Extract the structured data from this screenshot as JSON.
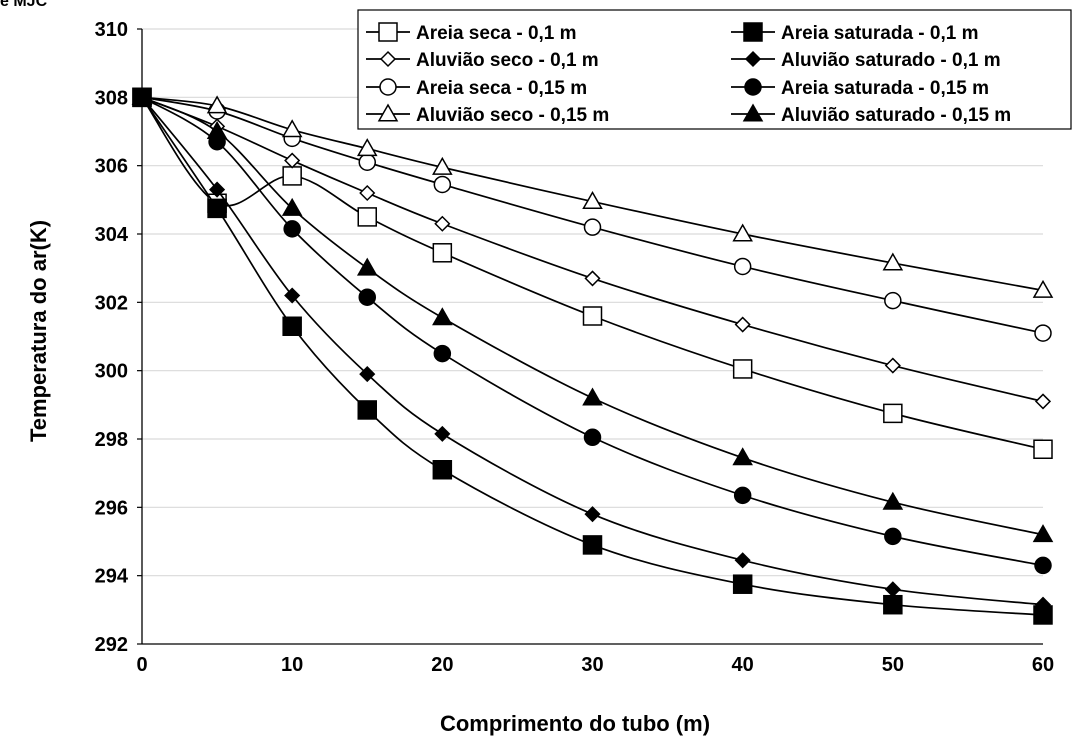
{
  "corner_label": "e MJC",
  "chart_data": {
    "type": "line",
    "title": "",
    "xlabel": "Comprimento do tubo (m)",
    "ylabel": "Temperatura do ar(K)",
    "xlim": [
      0,
      60
    ],
    "ylim": [
      292,
      310
    ],
    "xticks": [
      0,
      10,
      20,
      30,
      40,
      50,
      60
    ],
    "yticks": [
      292,
      294,
      296,
      298,
      300,
      302,
      304,
      306,
      308,
      310
    ],
    "grid": "horizontal",
    "legend_position": "top-right",
    "x": [
      0,
      5,
      10,
      15,
      20,
      30,
      40,
      50,
      60
    ],
    "series": [
      {
        "name": "Areia seca - 0,1 m",
        "marker": "square",
        "fill": "open",
        "values": [
          308.0,
          304.9,
          305.7,
          304.5,
          303.45,
          301.6,
          300.05,
          298.75,
          297.7
        ]
      },
      {
        "name": "Areia saturada - 0,1 m",
        "marker": "square",
        "fill": "filled",
        "values": [
          308.0,
          304.75,
          301.3,
          298.85,
          297.1,
          294.9,
          293.75,
          293.15,
          292.85
        ]
      },
      {
        "name": "Aluvião seco - 0,1 m",
        "marker": "diamond",
        "fill": "open",
        "values": [
          308.0,
          307.15,
          306.15,
          305.2,
          304.3,
          302.7,
          301.35,
          300.15,
          299.1
        ]
      },
      {
        "name": "Aluvião saturado - 0,1 m",
        "marker": "diamond",
        "fill": "filled",
        "values": [
          308.0,
          305.3,
          302.2,
          299.9,
          298.15,
          295.8,
          294.45,
          293.6,
          293.15
        ]
      },
      {
        "name": "Areia seca - 0,15 m",
        "marker": "circle",
        "fill": "open",
        "values": [
          308.0,
          307.6,
          306.8,
          306.1,
          305.45,
          304.2,
          303.05,
          302.05,
          301.1
        ]
      },
      {
        "name": "Areia saturada - 0,15 m",
        "marker": "circle",
        "fill": "filled",
        "values": [
          308.0,
          306.7,
          304.15,
          302.15,
          300.5,
          298.05,
          296.35,
          295.15,
          294.3
        ]
      },
      {
        "name": "Aluvião seco - 0,15 m",
        "marker": "triangle",
        "fill": "open",
        "values": [
          308.0,
          307.75,
          307.05,
          306.5,
          305.95,
          304.95,
          304.0,
          303.15,
          302.35
        ]
      },
      {
        "name": "Aluvião saturado - 0,15 m",
        "marker": "triangle",
        "fill": "filled",
        "values": [
          308.0,
          307.0,
          304.75,
          303.0,
          301.55,
          299.2,
          297.45,
          296.15,
          295.2
        ]
      }
    ]
  }
}
